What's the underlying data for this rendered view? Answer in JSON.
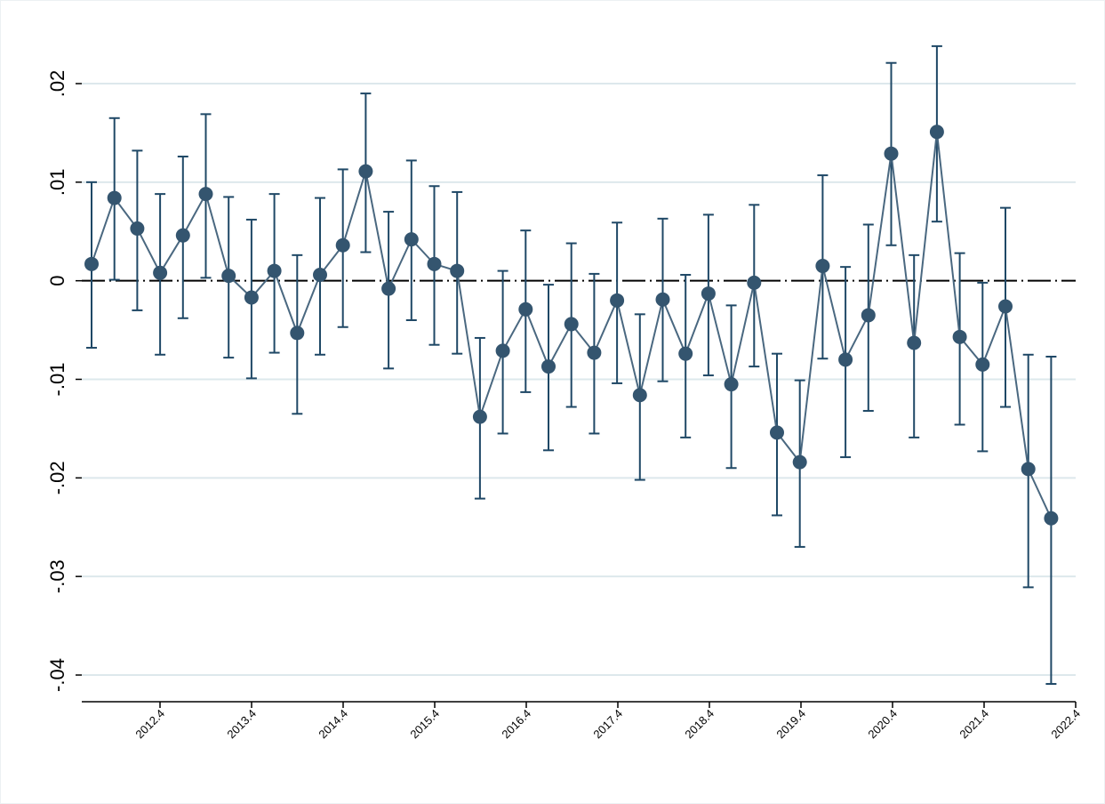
{
  "chart_data": {
    "type": "line",
    "title": "",
    "xlabel": "",
    "ylabel": "",
    "x_tick_labels": [
      "2012.4",
      "2013.4",
      "2014.4",
      "2015.4",
      "2016.4",
      "2017.4",
      "2018.4",
      "2019.4",
      "2020.4",
      "2021.4",
      "2022.4"
    ],
    "y_tick_labels": [
      "-.04",
      "-.03",
      "-.02",
      "-.01",
      "0",
      ".01",
      ".02"
    ],
    "y_ticks": [
      -0.04,
      -0.03,
      -0.02,
      -0.01,
      0,
      0.01,
      0.02
    ],
    "ylim": [
      -0.0425,
      0.0245
    ],
    "grid": true,
    "reference_line": 0,
    "error_bars": true,
    "colors": {
      "series": "#4a6880",
      "marker": "#34556f",
      "errorbar": "#1f4866",
      "grid": "#dde8ec",
      "reference": "#000000"
    },
    "series": [
      {
        "values": [
          0.0017,
          0.0084,
          0.0053,
          0.0008,
          0.0046,
          0.0088,
          0.0005,
          -0.0017,
          0.001,
          -0.0053,
          0.0006,
          0.0036,
          0.0111,
          -0.0008,
          0.0042,
          0.0017,
          0.001,
          -0.0138,
          -0.0071,
          -0.0029,
          -0.0087,
          -0.0044,
          -0.0073,
          -0.002,
          -0.0116,
          -0.0019,
          -0.0074,
          -0.0013,
          -0.0105,
          -0.0002,
          -0.0154,
          -0.0184,
          0.0015,
          -0.008,
          -0.0035,
          0.0129,
          -0.0063,
          0.0151,
          -0.0057,
          -0.0085,
          -0.0026,
          -0.0191,
          -0.0241
        ],
        "lower": [
          -0.0068,
          0.0001,
          -0.003,
          -0.0075,
          -0.0038,
          0.0003,
          -0.0078,
          -0.0099,
          -0.0073,
          -0.0135,
          -0.0075,
          -0.0047,
          0.0029,
          -0.0089,
          -0.004,
          -0.0065,
          -0.0074,
          -0.0221,
          -0.0155,
          -0.0113,
          -0.0172,
          -0.0128,
          -0.0155,
          -0.0104,
          -0.0202,
          -0.0102,
          -0.0159,
          -0.0096,
          -0.019,
          -0.0087,
          -0.0238,
          -0.027,
          -0.0079,
          -0.0179,
          -0.0132,
          0.0036,
          -0.0159,
          0.006,
          -0.0146,
          -0.0173,
          -0.0128,
          -0.0311,
          -0.0409
        ],
        "upper": [
          0.01,
          0.0165,
          0.0132,
          0.0088,
          0.0126,
          0.0169,
          0.0085,
          0.0062,
          0.0088,
          0.0026,
          0.0084,
          0.0113,
          0.019,
          0.007,
          0.0122,
          0.0096,
          0.009,
          -0.0058,
          0.001,
          0.0051,
          -0.0004,
          0.0038,
          0.0007,
          0.0059,
          -0.0034,
          0.0063,
          0.0006,
          0.0067,
          -0.0025,
          0.0077,
          -0.0074,
          -0.0101,
          0.0107,
          0.0014,
          0.0057,
          0.0221,
          0.0026,
          0.0238,
          0.0028,
          -0.0002,
          0.0074,
          -0.0075,
          -0.0077
        ]
      }
    ]
  }
}
